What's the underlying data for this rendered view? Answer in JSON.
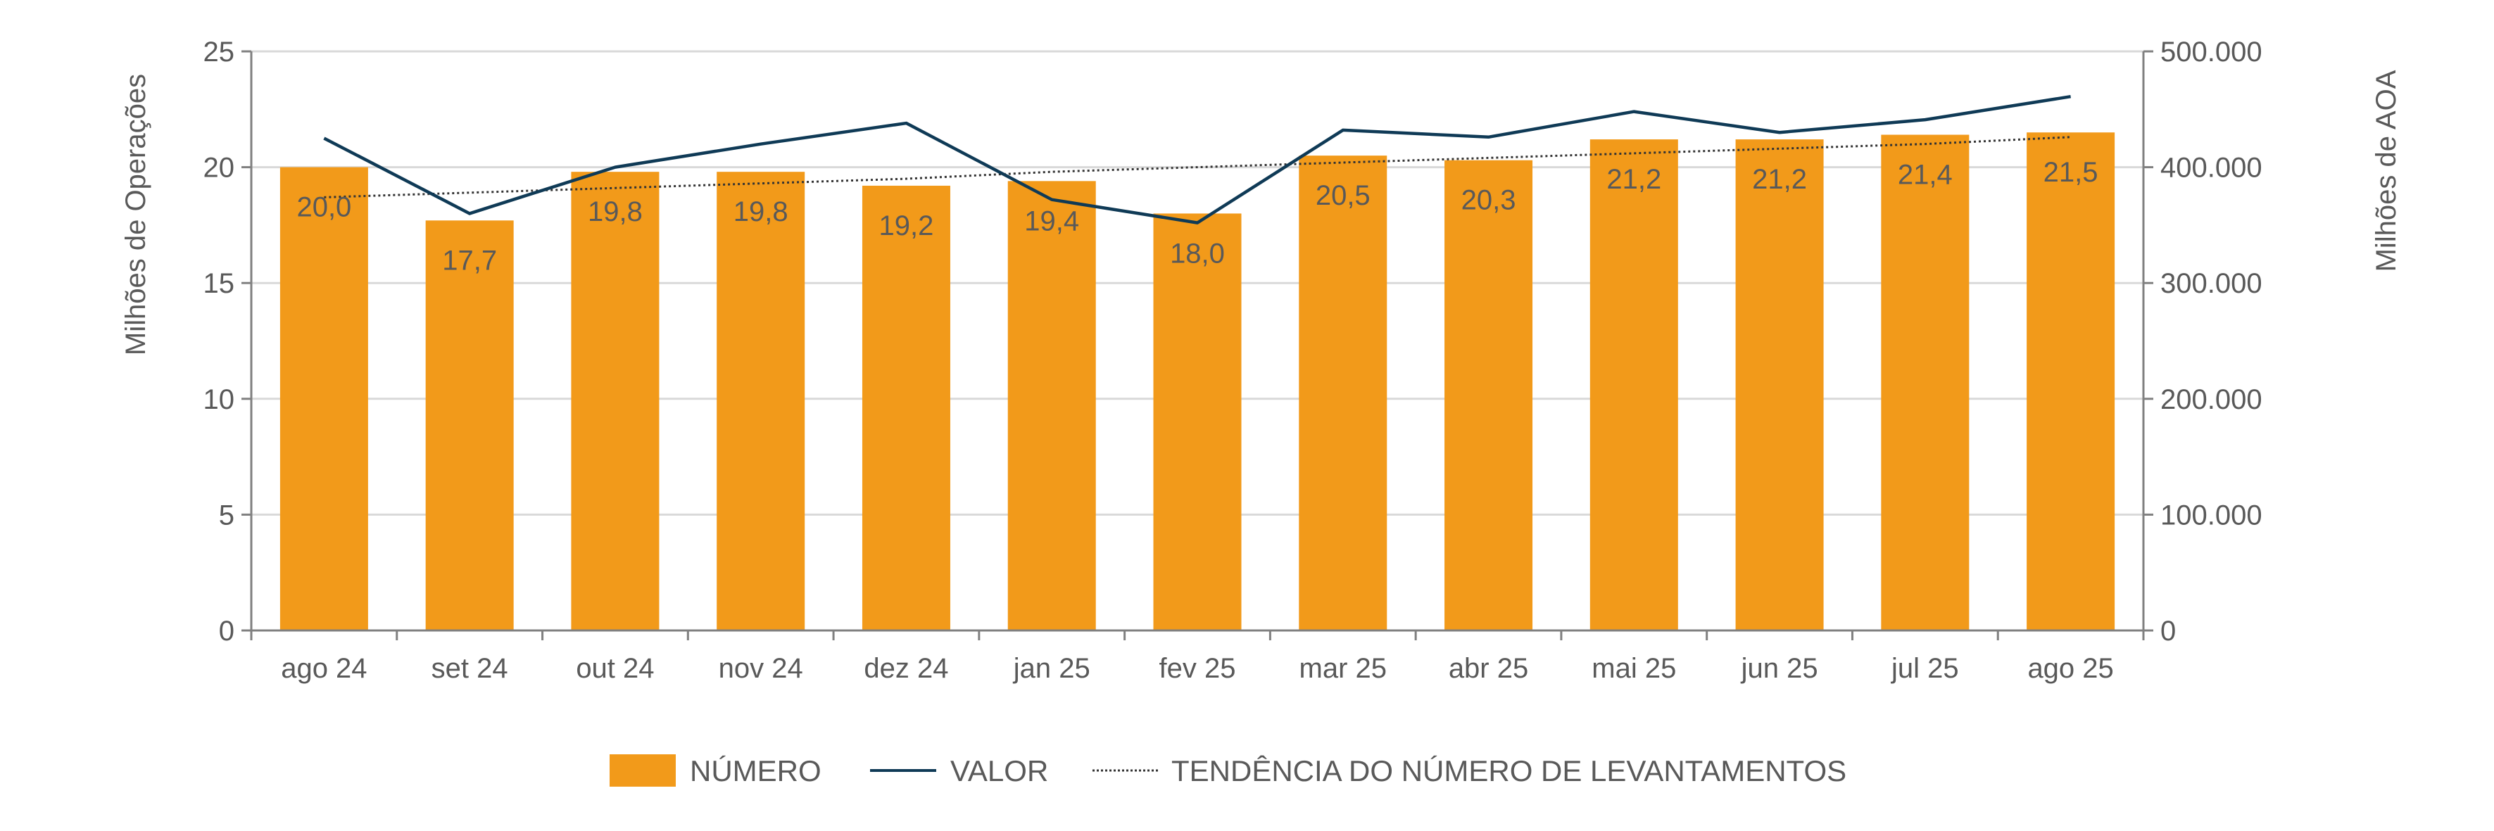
{
  "chart_data": {
    "type": "bar",
    "categories": [
      "ago 24",
      "set 24",
      "out 24",
      "nov 24",
      "dez 24",
      "jan 25",
      "fev 25",
      "mar 25",
      "abr 25",
      "mai 25",
      "jun 25",
      "jul 25",
      "ago 25"
    ],
    "series": [
      {
        "name": "NÚMERO",
        "type": "bar",
        "axis": "left",
        "color": "#f29a1a",
        "values": [
          20.0,
          17.7,
          19.8,
          19.8,
          19.2,
          19.4,
          18.0,
          20.5,
          20.3,
          21.2,
          21.2,
          21.4,
          21.5
        ],
        "labels": [
          "20,0",
          "17,7",
          "19,8",
          "19,8",
          "19,2",
          "19,4",
          "18,0",
          "20,5",
          "20,3",
          "21,2",
          "21,2",
          "21,4",
          "21,5"
        ]
      },
      {
        "name": "VALOR",
        "type": "line",
        "axis": "right",
        "color": "#0f3a56",
        "values": [
          425000,
          360000,
          400000,
          420000,
          438000,
          372000,
          352000,
          432000,
          426000,
          448000,
          430000,
          441000,
          461000
        ]
      },
      {
        "name": "TENDÊNCIA DO NÚMERO DE LEVANTAMENTOS",
        "type": "trendline",
        "axis": "left",
        "color": "#333333",
        "values": [
          18.7,
          18.9,
          19.1,
          19.3,
          19.5,
          19.8,
          20.0,
          20.2,
          20.4,
          20.6,
          20.8,
          21.0,
          21.3
        ]
      }
    ],
    "ylabel": "Milhões de Operações",
    "ylim": [
      0,
      25
    ],
    "yticks": [
      "0",
      "5",
      "10",
      "15",
      "20",
      "25"
    ],
    "y2label": "Milhões de AOA",
    "y2lim": [
      0,
      500000
    ],
    "y2ticks": [
      "0",
      "100.000",
      "200.000",
      "300.000",
      "400.000",
      "500.000"
    ],
    "grid": true,
    "legend_position": "bottom"
  }
}
